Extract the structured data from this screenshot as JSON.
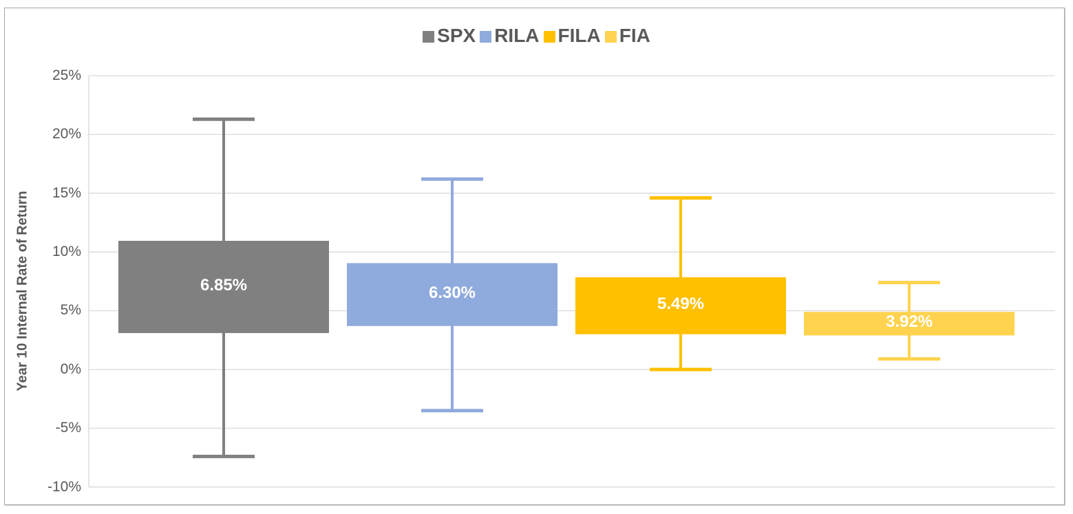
{
  "chart_data": {
    "type": "box",
    "title": "",
    "xlabel": "",
    "ylabel": "Year 10 Internal Rate of Return",
    "ylim": [
      -10,
      25
    ],
    "yticks": [
      "25%",
      "20%",
      "15%",
      "10%",
      "5%",
      "0%",
      "-5%",
      "-10%"
    ],
    "ytick_values": [
      25,
      20,
      15,
      10,
      5,
      0,
      -5,
      -10
    ],
    "grid": true,
    "legend_position": "top",
    "categories": [
      "SPX",
      "RILA",
      "FILA",
      "FIA"
    ],
    "series": [
      {
        "name": "SPX",
        "color": "#808080",
        "label": "6.85%",
        "median": 6.85,
        "box_low": 3.1,
        "box_high": 10.95,
        "whisker_low": -7.4,
        "whisker_high": 21.3
      },
      {
        "name": "RILA",
        "color": "#8faadc",
        "label": "6.30%",
        "median": 6.3,
        "box_low": 3.7,
        "box_high": 9.05,
        "whisker_low": -3.5,
        "whisker_high": 16.2
      },
      {
        "name": "FILA",
        "color": "#ffc000",
        "label": "5.49%",
        "median": 5.49,
        "box_low": 3.0,
        "box_high": 7.85,
        "whisker_low": 0.0,
        "whisker_high": 14.6
      },
      {
        "name": "FIA",
        "color": "#ffd34f",
        "label": "3.92%",
        "median": 3.92,
        "box_low": 2.9,
        "box_high": 4.9,
        "whisker_low": 0.9,
        "whisker_high": 7.4
      }
    ]
  },
  "legend": [
    {
      "label": "SPX",
      "color": "#808080"
    },
    {
      "label": "RILA",
      "color": "#8faadc"
    },
    {
      "label": "FILA",
      "color": "#ffc000"
    },
    {
      "label": "FIA",
      "color": "#ffd34f"
    }
  ],
  "axis": {
    "ylabel": "Year 10 Internal Rate of Return",
    "ticks": [
      "25%",
      "20%",
      "15%",
      "10%",
      "5%",
      "0%",
      "-5%",
      "-10%"
    ]
  },
  "labels": [
    "6.85%",
    "6.30%",
    "5.49%",
    "3.92%"
  ]
}
